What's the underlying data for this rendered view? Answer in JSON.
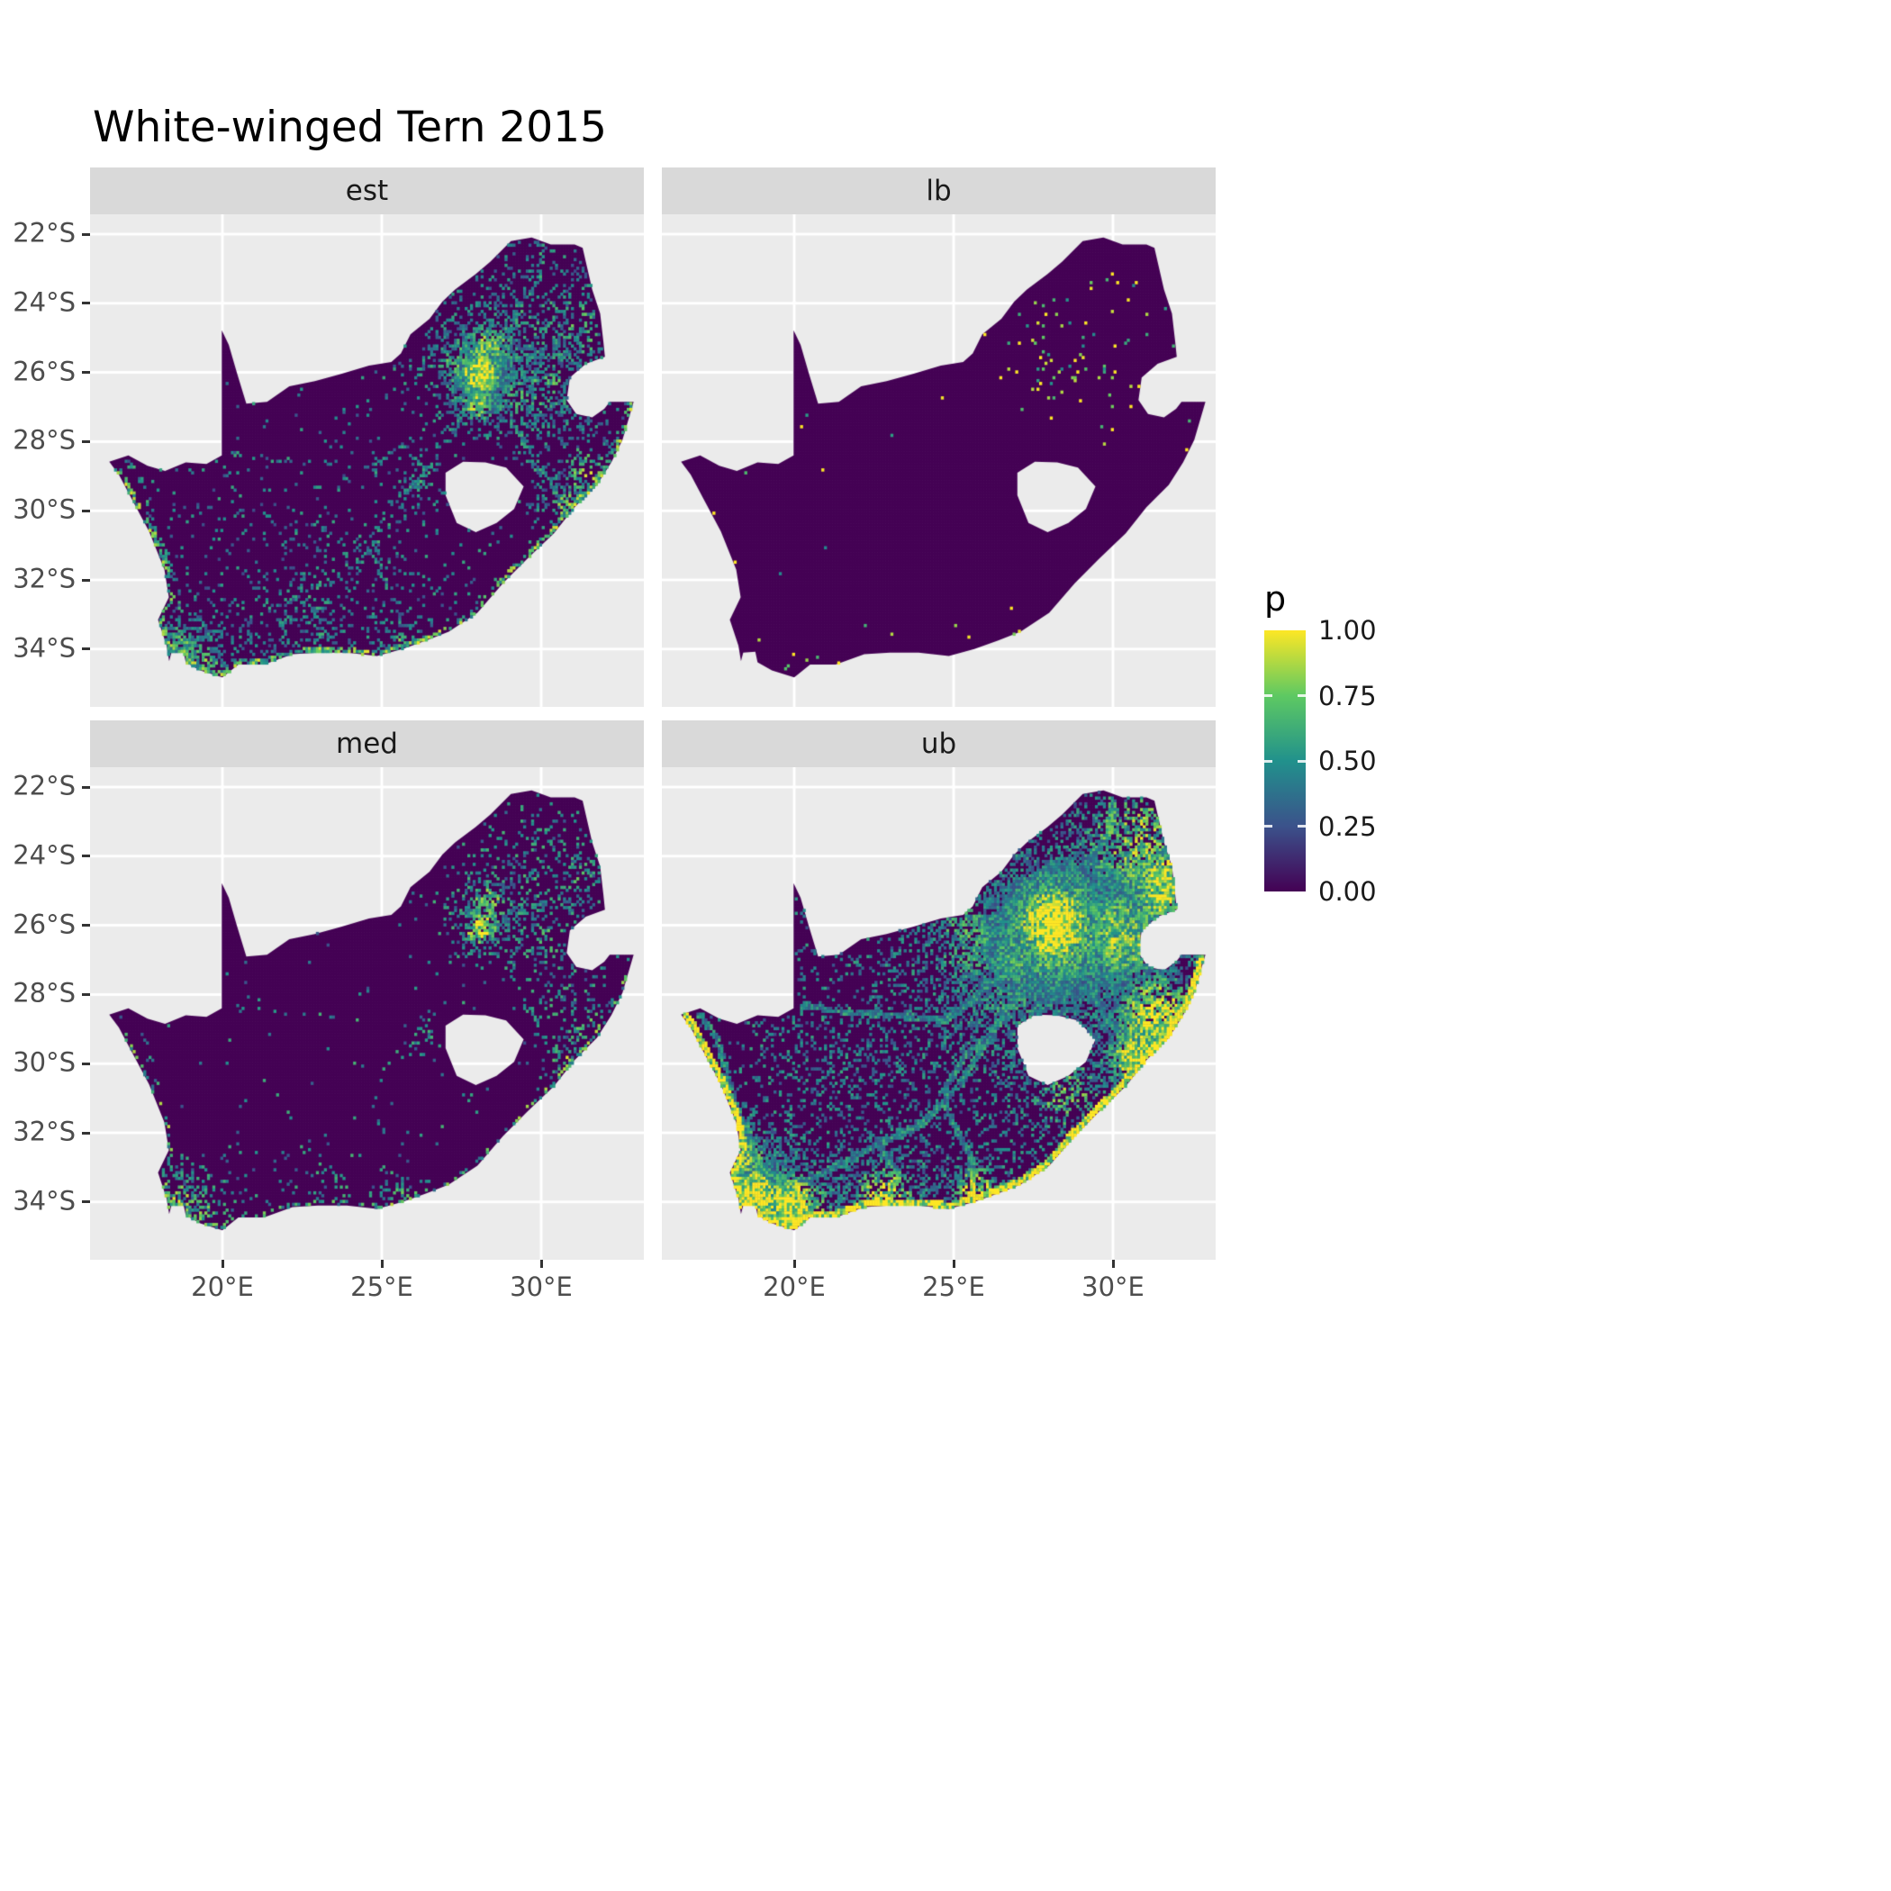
{
  "title": "White-winged Tern 2015",
  "legend": {
    "title": "p",
    "ticks": [
      {
        "label": "1.00",
        "value": 1
      },
      {
        "label": "0.75",
        "value": 0.75
      },
      {
        "label": "0.50",
        "value": 0.5
      },
      {
        "label": "0.25",
        "value": 0.25
      },
      {
        "label": "0.00",
        "value": 0
      }
    ]
  },
  "axes": {
    "x": {
      "ticks": [
        {
          "label": "20°E",
          "value": 20
        },
        {
          "label": "25°E",
          "value": 25
        },
        {
          "label": "30°E",
          "value": 30
        }
      ]
    },
    "y": {
      "ticks": [
        {
          "label": "22°S",
          "value": -22
        },
        {
          "label": "24°S",
          "value": -24
        },
        {
          "label": "26°S",
          "value": -26
        },
        {
          "label": "28°S",
          "value": -28
        },
        {
          "label": "30°S",
          "value": -30
        },
        {
          "label": "32°S",
          "value": -32
        },
        {
          "label": "34°S",
          "value": -34
        }
      ]
    }
  },
  "chart_data": {
    "type": "heatmap",
    "title": "White-winged Tern 2015",
    "variable": "p",
    "value_range": [
      0,
      1
    ],
    "facets": [
      {
        "label": "est"
      },
      {
        "label": "lb"
      },
      {
        "label": "med"
      },
      {
        "label": "ub"
      }
    ],
    "facet_layout": {
      "rows": 2,
      "cols": 2
    },
    "x_range": [
      15.85,
      33.22
    ],
    "y_range": [
      -35.67,
      -21.43
    ],
    "colormap": {
      "name": "viridis",
      "stops": [
        [
          0,
          "#440154"
        ],
        [
          0.25,
          "#3B528B"
        ],
        [
          0.5,
          "#21918C"
        ],
        [
          0.75,
          "#5EC962"
        ],
        [
          1,
          "#FDE725"
        ]
      ]
    },
    "colors": {
      "panel_bg": "#EBEBEB",
      "strip_bg": "#D9D9D9",
      "grid": "#FFFFFF",
      "tick": "#333333",
      "axis_text": "#4D4D4D",
      "strip_text": "#1A1A1A",
      "title_text": "#000000"
    },
    "map": {
      "region": "South Africa (Lesotho and Eswatini shown as holes)",
      "coast_start": 41,
      "outer": [
        [
          16.45,
          -28.58
        ],
        [
          17.05,
          -28.4
        ],
        [
          17.65,
          -28.7
        ],
        [
          18.2,
          -28.85
        ],
        [
          18.85,
          -28.6
        ],
        [
          19.5,
          -28.65
        ],
        [
          19.98,
          -28.4
        ],
        [
          19.98,
          -24.78
        ],
        [
          20.2,
          -25.2
        ],
        [
          20.45,
          -26.0
        ],
        [
          20.65,
          -26.6
        ],
        [
          20.75,
          -26.9
        ],
        [
          21.4,
          -26.85
        ],
        [
          22.1,
          -26.4
        ],
        [
          22.9,
          -26.25
        ],
        [
          23.7,
          -26.05
        ],
        [
          24.6,
          -25.8
        ],
        [
          25.3,
          -25.7
        ],
        [
          25.6,
          -25.45
        ],
        [
          25.9,
          -24.9
        ],
        [
          26.5,
          -24.45
        ],
        [
          26.9,
          -23.95
        ],
        [
          27.3,
          -23.6
        ],
        [
          27.95,
          -23.15
        ],
        [
          28.4,
          -22.8
        ],
        [
          29.05,
          -22.2
        ],
        [
          29.7,
          -22.1
        ],
        [
          30.3,
          -22.3
        ],
        [
          31.05,
          -22.3
        ],
        [
          31.3,
          -22.4
        ],
        [
          31.6,
          -23.6
        ],
        [
          31.85,
          -24.3
        ],
        [
          31.95,
          -25.1
        ],
        [
          32.0,
          -25.55
        ],
        [
          31.4,
          -25.75
        ],
        [
          30.9,
          -26.15
        ],
        [
          30.8,
          -26.8
        ],
        [
          31.1,
          -27.2
        ],
        [
          31.6,
          -27.3
        ],
        [
          31.98,
          -27.05
        ],
        [
          32.15,
          -26.85
        ],
        [
          32.9,
          -26.85
        ],
        [
          32.55,
          -27.95
        ],
        [
          32.2,
          -28.6
        ],
        [
          31.75,
          -29.25
        ],
        [
          31.05,
          -29.9
        ],
        [
          30.4,
          -30.65
        ],
        [
          29.55,
          -31.4
        ],
        [
          28.8,
          -32.1
        ],
        [
          28.0,
          -32.95
        ],
        [
          27.1,
          -33.5
        ],
        [
          26.4,
          -33.75
        ],
        [
          25.65,
          -34.0
        ],
        [
          24.85,
          -34.2
        ],
        [
          23.9,
          -34.1
        ],
        [
          23.0,
          -34.1
        ],
        [
          22.2,
          -34.15
        ],
        [
          21.3,
          -34.45
        ],
        [
          20.5,
          -34.45
        ],
        [
          20.0,
          -34.82
        ],
        [
          19.3,
          -34.62
        ],
        [
          18.85,
          -34.38
        ],
        [
          18.78,
          -34.08
        ],
        [
          18.4,
          -34.1
        ],
        [
          18.33,
          -34.35
        ],
        [
          18.25,
          -33.9
        ],
        [
          17.98,
          -33.15
        ],
        [
          18.32,
          -32.5
        ],
        [
          18.18,
          -31.7
        ],
        [
          17.7,
          -30.6
        ],
        [
          17.15,
          -29.65
        ],
        [
          16.75,
          -28.95
        ]
      ],
      "lesotho": [
        [
          27.0,
          -28.9
        ],
        [
          27.55,
          -28.58
        ],
        [
          28.25,
          -28.6
        ],
        [
          28.9,
          -28.75
        ],
        [
          29.45,
          -29.3
        ],
        [
          29.15,
          -29.95
        ],
        [
          28.6,
          -30.35
        ],
        [
          27.95,
          -30.62
        ],
        [
          27.35,
          -30.35
        ],
        [
          27.0,
          -29.55
        ]
      ]
    },
    "routes": [
      [
        [
          18.6,
          -33.8
        ],
        [
          20.6,
          -33.3
        ],
        [
          22.6,
          -32.35
        ],
        [
          24.05,
          -31.7
        ],
        [
          25.1,
          -30.7
        ],
        [
          26.2,
          -29.12
        ],
        [
          27.2,
          -27.7
        ],
        [
          28.0,
          -26.35
        ]
      ],
      [
        [
          28.0,
          -26.3
        ],
        [
          26.6,
          -27.4
        ],
        [
          24.77,
          -28.74
        ],
        [
          23.0,
          -28.6
        ],
        [
          21.25,
          -28.45
        ],
        [
          20.3,
          -28.3
        ]
      ],
      [
        [
          28.1,
          -26.35
        ],
        [
          29.25,
          -27.65
        ],
        [
          29.8,
          -28.7
        ],
        [
          30.6,
          -29.6
        ],
        [
          30.95,
          -29.88
        ]
      ],
      [
        [
          28.2,
          -25.73
        ],
        [
          29.0,
          -24.7
        ],
        [
          29.45,
          -23.9
        ],
        [
          29.95,
          -23.25
        ],
        [
          30.0,
          -22.4
        ]
      ],
      [
        [
          28.25,
          -25.73
        ],
        [
          29.3,
          -25.6
        ],
        [
          30.5,
          -25.48
        ],
        [
          31.5,
          -25.45
        ]
      ],
      [
        [
          28.1,
          -25.7
        ],
        [
          27.2,
          -25.65
        ],
        [
          26.15,
          -25.85
        ],
        [
          25.45,
          -25.78
        ]
      ],
      [
        [
          18.55,
          -33.6
        ],
        [
          18.75,
          -32.55
        ],
        [
          18.3,
          -31.55
        ],
        [
          17.9,
          -30.5
        ],
        [
          17.6,
          -29.3
        ],
        [
          17.05,
          -28.6
        ]
      ],
      [
        [
          25.6,
          -33.85
        ],
        [
          25.55,
          -32.7
        ],
        [
          25.0,
          -31.8
        ],
        [
          24.6,
          -30.8
        ]
      ],
      [
        [
          22.6,
          -32.35
        ],
        [
          23.3,
          -33.2
        ],
        [
          22.9,
          -33.95
        ]
      ],
      [
        [
          26.2,
          -29.12
        ],
        [
          25.4,
          -29.7
        ],
        [
          24.77,
          -30.65
        ]
      ]
    ],
    "facet_params": [
      {
        "seed": 101,
        "base_p": 0.012,
        "bg_a": 0.5,
        "coast": {
          "d": 0.45,
          "a": 0.8,
          "w": 0.16
        },
        "route": {
          "d": 0.22,
          "a": 0.55,
          "w": 0.09
        },
        "hotspots": [
          [
            28.1,
            -26.05,
            0.5,
            1.0,
            1.3
          ],
          [
            28.35,
            -25.3,
            0.75,
            0.45,
            0.85
          ],
          [
            27.35,
            -25.7,
            0.9,
            0.3,
            0.7
          ],
          [
            29.8,
            -24.4,
            1.8,
            0.14,
            0.6
          ],
          [
            31.2,
            -24.7,
            1.1,
            0.22,
            0.7
          ],
          [
            30.2,
            -26.4,
            1.0,
            0.28,
            0.7
          ],
          [
            29.3,
            -26.7,
            0.8,
            0.25,
            0.65
          ],
          [
            31.5,
            -28.9,
            0.9,
            0.3,
            0.8
          ],
          [
            30.8,
            -29.9,
            0.6,
            0.35,
            0.8
          ],
          [
            26.25,
            -29.1,
            0.45,
            0.3,
            0.7
          ],
          [
            18.65,
            -33.95,
            0.6,
            0.5,
            0.8
          ],
          [
            19.4,
            -34.45,
            0.8,
            0.35,
            0.75
          ],
          [
            25.6,
            -33.9,
            0.5,
            0.3,
            0.75
          ],
          [
            22.5,
            -34.0,
            1.0,
            0.2,
            0.6
          ],
          [
            24.5,
            -32.2,
            2.3,
            0.08,
            0.45
          ],
          [
            20.5,
            -31.5,
            2.0,
            0.05,
            0.4
          ],
          [
            28.0,
            -26.9,
            0.5,
            0.5,
            0.9
          ]
        ]
      },
      {
        "seed": 202,
        "base_p": 0.0012,
        "bg_a": 1.0,
        "coast": {
          "d": 0.02,
          "a": 1.0,
          "w": 0.1
        },
        "route": {
          "d": 0,
          "a": 0,
          "w": 0.08
        },
        "hotspots": [
          [
            27.6,
            -25.4,
            0.9,
            0.035,
            1.0
          ],
          [
            28.7,
            -24.7,
            0.9,
            0.025,
            0.95
          ],
          [
            28.15,
            -26.05,
            0.45,
            0.05,
            1.0
          ],
          [
            29.9,
            -26.4,
            0.8,
            0.02,
            0.9
          ],
          [
            31.2,
            -24.3,
            0.8,
            0.015,
            0.9
          ],
          [
            19.9,
            -34.45,
            0.35,
            0.07,
            1.1
          ]
        ]
      },
      {
        "seed": 303,
        "base_p": 0.006,
        "bg_a": 0.55,
        "coast": {
          "d": 0.22,
          "a": 0.75,
          "w": 0.13
        },
        "route": {
          "d": 0.08,
          "a": 0.5,
          "w": 0.08
        },
        "hotspots": [
          [
            28.1,
            -26.05,
            0.5,
            0.7,
            1.1
          ],
          [
            28.35,
            -25.3,
            0.75,
            0.3,
            0.8
          ],
          [
            29.7,
            -24.3,
            1.3,
            0.12,
            0.6
          ],
          [
            31.2,
            -24.7,
            1.0,
            0.15,
            0.65
          ],
          [
            30.2,
            -26.4,
            1.0,
            0.18,
            0.65
          ],
          [
            31.5,
            -28.9,
            0.9,
            0.22,
            0.75
          ],
          [
            30.8,
            -29.9,
            0.6,
            0.25,
            0.8
          ],
          [
            18.65,
            -33.95,
            0.6,
            0.4,
            0.85
          ],
          [
            19.4,
            -34.45,
            0.8,
            0.3,
            0.8
          ],
          [
            25.6,
            -33.9,
            0.5,
            0.25,
            0.75
          ],
          [
            22.5,
            -34.0,
            1.0,
            0.12,
            0.6
          ],
          [
            26.25,
            -29.1,
            0.4,
            0.2,
            0.7
          ]
        ]
      },
      {
        "seed": 404,
        "base_p": 0.035,
        "bg_a": 0.5,
        "coast": {
          "d": 1.1,
          "a": 1.25,
          "w": 0.2
        },
        "route": {
          "d": 0.75,
          "a": 0.55,
          "w": 0.1
        },
        "hotspots": [
          [
            28.15,
            -26.0,
            0.85,
            2.6,
            1.5
          ],
          [
            28.2,
            -26.1,
            1.7,
            0.5,
            0.9
          ],
          [
            27.0,
            -26.9,
            1.2,
            0.35,
            0.7
          ],
          [
            30.8,
            -23.6,
            1.8,
            0.4,
            0.85
          ],
          [
            31.8,
            -24.9,
            1.1,
            0.55,
            1.1
          ],
          [
            30.3,
            -26.3,
            1.3,
            0.5,
            0.9
          ],
          [
            29.2,
            -26.8,
            1.0,
            0.35,
            0.7
          ],
          [
            31.4,
            -28.7,
            1.1,
            0.6,
            1.1
          ],
          [
            30.8,
            -29.9,
            0.8,
            0.7,
            1.2
          ],
          [
            26.8,
            -28.3,
            1.6,
            0.22,
            0.6
          ],
          [
            25.4,
            -26.4,
            1.4,
            0.28,
            0.7
          ],
          [
            18.7,
            -33.9,
            0.75,
            1.1,
            1.3
          ],
          [
            19.9,
            -34.35,
            1.0,
            0.8,
            1.2
          ],
          [
            22.8,
            -33.95,
            1.0,
            0.5,
            1.0
          ],
          [
            25.7,
            -33.8,
            0.7,
            0.6,
            1.1
          ],
          [
            18.25,
            -32.6,
            0.9,
            0.45,
            0.9
          ],
          [
            23.5,
            -31.5,
            2.6,
            0.15,
            0.5
          ],
          [
            21.0,
            -29.5,
            2.2,
            0.1,
            0.45
          ],
          [
            28.5,
            -30.8,
            1.2,
            0.3,
            0.8
          ]
        ]
      }
    ]
  }
}
